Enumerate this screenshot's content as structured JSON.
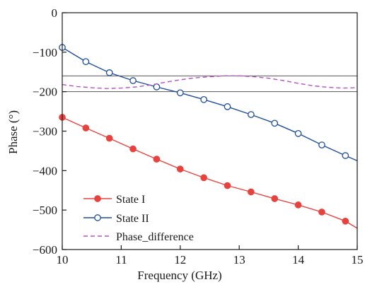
{
  "chart_data": {
    "type": "line",
    "title": "",
    "xlabel": "Frequency (GHz)",
    "ylabel": "Phase (°)",
    "xlim": [
      10,
      15
    ],
    "ylim": [
      -600,
      0
    ],
    "xticks": [
      10,
      11,
      12,
      13,
      14,
      15
    ],
    "yticks": [
      0,
      -100,
      -200,
      -300,
      -400,
      -500,
      -600
    ],
    "xtick_labels": [
      "10",
      "11",
      "12",
      "13",
      "14",
      "15"
    ],
    "ytick_labels": [
      "0",
      "−100",
      "−200",
      "−300",
      "−400",
      "−500",
      "−600"
    ],
    "grid": false,
    "legend_position": "bottom-left",
    "reference_lines": [
      -160,
      -200
    ],
    "series": [
      {
        "name": "State I",
        "color": "#e8423f",
        "marker": "filled-circle",
        "line_style": "solid",
        "x": [
          10.0,
          10.4,
          10.8,
          11.2,
          11.6,
          12.0,
          12.4,
          12.8,
          13.2,
          13.6,
          14.0,
          14.4,
          14.8
        ],
        "y": [
          -265,
          -292,
          -318,
          -345,
          -371,
          -396,
          -418,
          -438,
          -454,
          -471,
          -487,
          -505,
          -528
        ],
        "x_end": 15.0,
        "y_end": -546
      },
      {
        "name": "State II",
        "color": "#1f4e9c",
        "marker": "open-circle",
        "line_style": "solid",
        "x": [
          10.0,
          10.4,
          10.8,
          11.2,
          11.6,
          12.0,
          12.4,
          12.8,
          13.2,
          13.6,
          14.0,
          14.4,
          14.8
        ],
        "y": [
          -88,
          -124,
          -152,
          -172,
          -188,
          -203,
          -220,
          -238,
          -258,
          -280,
          -306,
          -335,
          -362
        ],
        "x_end": 15.0,
        "y_end": -375
      },
      {
        "name": "Phase_difference",
        "color": "#b452c4",
        "marker": "none",
        "line_style": "dashed",
        "x": [
          10.0,
          10.25,
          10.5,
          10.75,
          11.0,
          11.25,
          11.5,
          11.75,
          12.0,
          12.25,
          12.5,
          12.75,
          13.0,
          13.25,
          13.5,
          13.75,
          14.0,
          14.25,
          14.5,
          14.75,
          15.0
        ],
        "y": [
          -182,
          -187,
          -190,
          -192,
          -191,
          -188,
          -183,
          -176,
          -170,
          -165,
          -162,
          -160,
          -160,
          -162,
          -166,
          -172,
          -179,
          -185,
          -189,
          -191,
          -190
        ]
      }
    ]
  }
}
